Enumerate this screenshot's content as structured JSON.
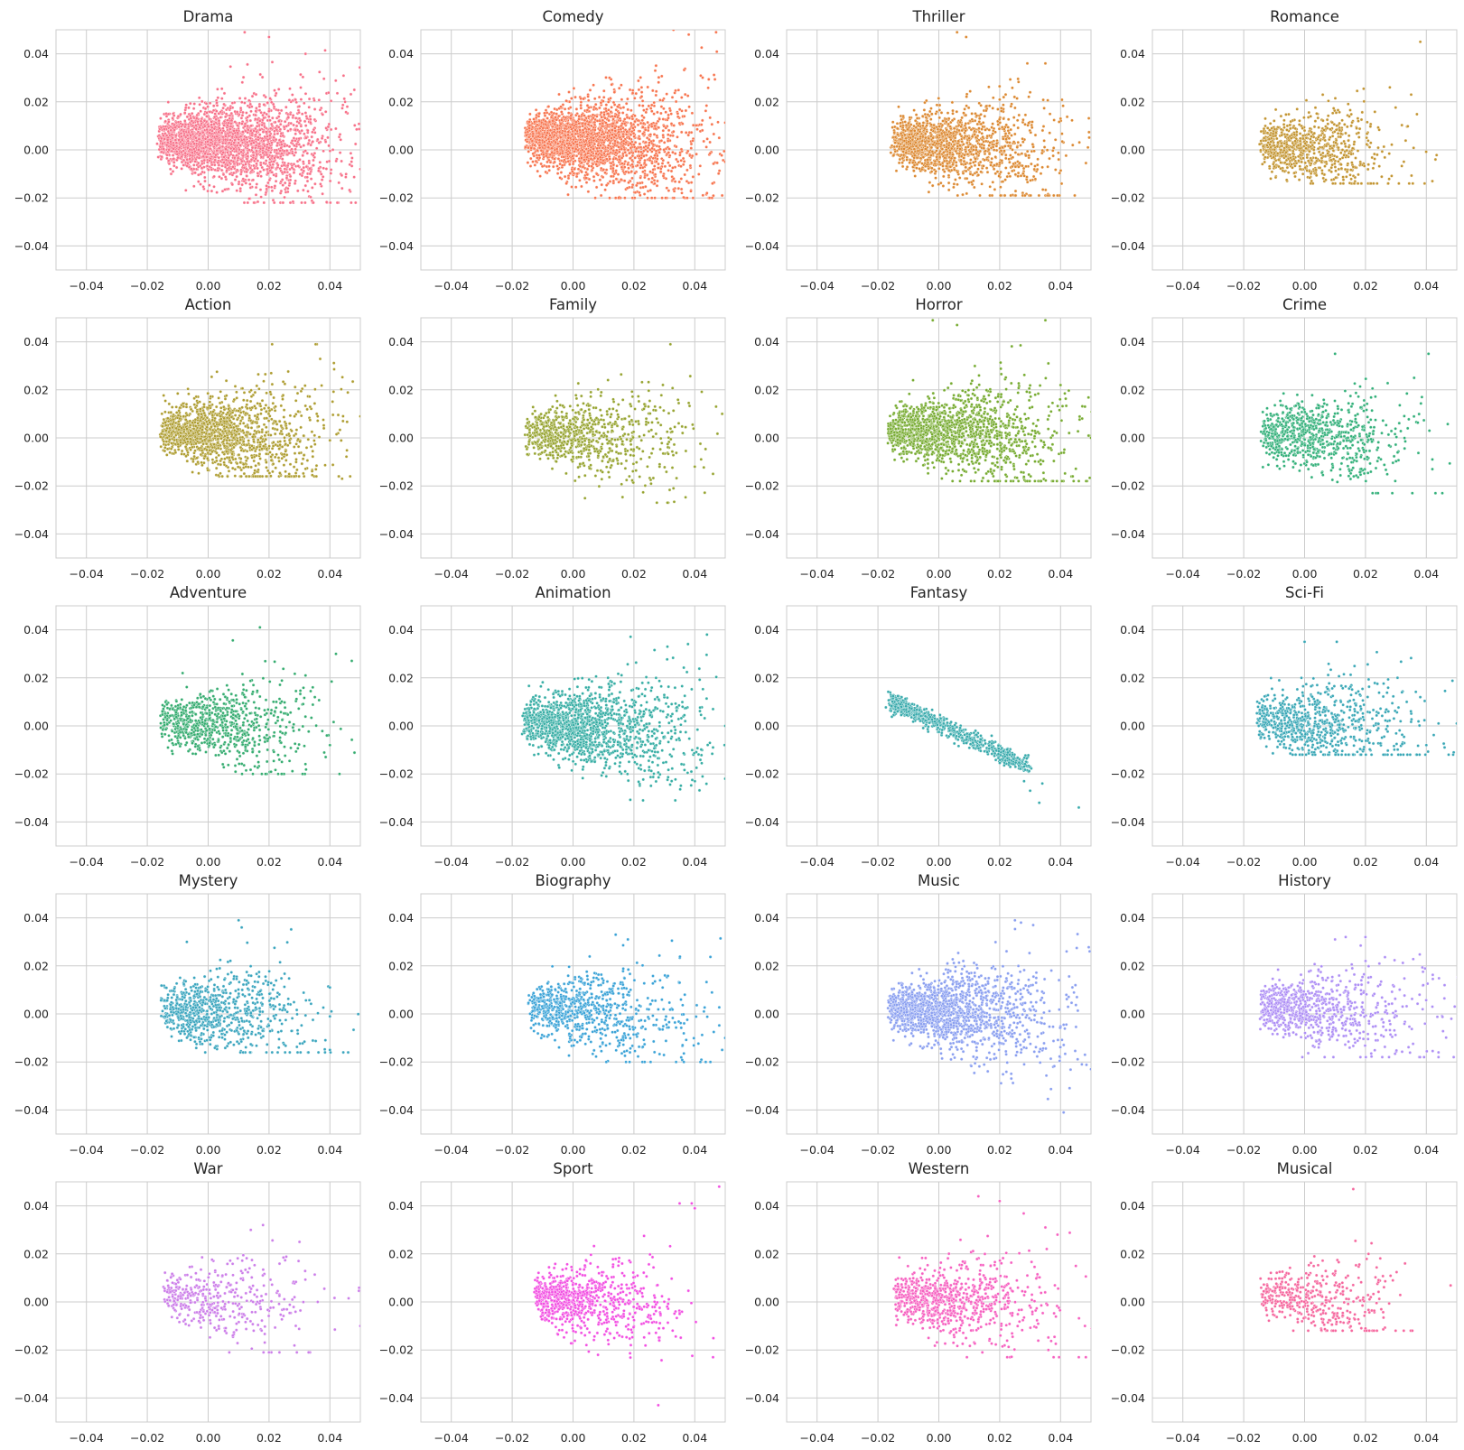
{
  "figure": {
    "axis_ticks": {
      "x": [
        -0.04,
        -0.02,
        0.0,
        0.02,
        0.04
      ],
      "y": [
        -0.04,
        -0.02,
        0.0,
        0.02,
        0.04
      ]
    },
    "tick_labels": {
      "x": [
        "−0.04",
        "−0.02",
        "0.00",
        "0.02",
        "0.04"
      ],
      "y": [
        "−0.04",
        "−0.02",
        "0.00",
        "0.02",
        "0.04"
      ]
    }
  },
  "chart_data": [
    {
      "type": "scatter",
      "title": "Drama",
      "color": "#f77189",
      "xlim": [
        -0.05,
        0.05
      ],
      "ylim": [
        -0.05,
        0.05
      ],
      "grid": true,
      "density": "very high",
      "cluster": {
        "x_range": [
          -0.018,
          0.05
        ],
        "y_range": [
          -0.022,
          0.05
        ],
        "center": [
          0.004,
          0.003
        ]
      },
      "outliers": [
        [
          0.012,
          0.049
        ],
        [
          0.02,
          0.047
        ],
        [
          0.032,
          0.04
        ],
        [
          0.045,
          0.02
        ],
        [
          0.048,
          0.025
        ],
        [
          0.05,
          -0.008
        ],
        [
          0.047,
          -0.022
        ],
        [
          0.044,
          -0.016
        ]
      ]
    },
    {
      "type": "scatter",
      "title": "Comedy",
      "color": "#f7754f",
      "xlim": [
        -0.05,
        0.05
      ],
      "ylim": [
        -0.05,
        0.05
      ],
      "grid": true,
      "density": "very high",
      "cluster": {
        "x_range": [
          -0.017,
          0.05
        ],
        "y_range": [
          -0.02,
          0.05
        ],
        "center": [
          0.004,
          0.004
        ]
      },
      "outliers": [
        [
          0.038,
          0.048
        ],
        [
          0.047,
          0.049
        ],
        [
          0.033,
          0.05
        ],
        [
          0.048,
          0.005
        ],
        [
          0.05,
          -0.005
        ],
        [
          0.044,
          -0.018
        ],
        [
          0.049,
          -0.019
        ]
      ]
    },
    {
      "type": "scatter",
      "title": "Thriller",
      "color": "#dc8932",
      "xlim": [
        -0.05,
        0.05
      ],
      "ylim": [
        -0.05,
        0.05
      ],
      "grid": true,
      "density": "high",
      "cluster": {
        "x_range": [
          -0.017,
          0.05
        ],
        "y_range": [
          -0.019,
          0.05
        ],
        "center": [
          0.001,
          0.002
        ]
      },
      "outliers": [
        [
          0.006,
          0.049
        ],
        [
          0.009,
          0.047
        ],
        [
          0.03,
          0.024
        ],
        [
          0.035,
          0.036
        ],
        [
          0.04,
          0.013
        ],
        [
          0.039,
          -0.019
        ],
        [
          0.044,
          0.002
        ],
        [
          0.049,
          0.001
        ]
      ]
    },
    {
      "type": "scatter",
      "title": "Romance",
      "color": "#c39532",
      "xlim": [
        -0.05,
        0.05
      ],
      "ylim": [
        -0.05,
        0.05
      ],
      "grid": true,
      "density": "medium",
      "cluster": {
        "x_range": [
          -0.016,
          0.032
        ],
        "y_range": [
          -0.014,
          0.036
        ],
        "center": [
          0.0,
          0.001
        ]
      },
      "outliers": [
        [
          0.038,
          0.045
        ],
        [
          0.035,
          0.023
        ],
        [
          0.028,
          0.026
        ],
        [
          0.042,
          -0.013
        ],
        [
          0.043,
          -0.004
        ]
      ]
    },
    {
      "type": "scatter",
      "title": "Action",
      "color": "#ae9d31",
      "xlim": [
        -0.05,
        0.05
      ],
      "ylim": [
        -0.05,
        0.05
      ],
      "grid": true,
      "density": "high",
      "cluster": {
        "x_range": [
          -0.017,
          0.05
        ],
        "y_range": [
          -0.016,
          0.039
        ],
        "center": [
          0.001,
          0.002
        ]
      },
      "outliers": [
        [
          0.021,
          0.039
        ],
        [
          0.036,
          0.009
        ],
        [
          0.04,
          -0.001
        ],
        [
          0.044,
          -0.017
        ],
        [
          0.05,
          0.009
        ],
        [
          0.038,
          0.004
        ]
      ]
    },
    {
      "type": "scatter",
      "title": "Family",
      "color": "#97a431",
      "xlim": [
        -0.05,
        0.05
      ],
      "ylim": [
        -0.05,
        0.05
      ],
      "grid": true,
      "density": "medium",
      "cluster": {
        "x_range": [
          -0.017,
          0.05
        ],
        "y_range": [
          -0.027,
          0.04
        ],
        "center": [
          0.001,
          0.001
        ]
      },
      "outliers": [
        [
          0.032,
          0.039
        ],
        [
          0.033,
          -0.021
        ],
        [
          0.031,
          -0.027
        ],
        [
          0.04,
          -0.012
        ],
        [
          0.047,
          0.013
        ],
        [
          0.049,
          0.01
        ],
        [
          0.046,
          -0.015
        ]
      ]
    },
    {
      "type": "scatter",
      "title": "Horror",
      "color": "#77ab31",
      "xlim": [
        -0.05,
        0.05
      ],
      "ylim": [
        -0.05,
        0.05
      ],
      "grid": true,
      "density": "high",
      "cluster": {
        "x_range": [
          -0.018,
          0.05
        ],
        "y_range": [
          -0.018,
          0.05
        ],
        "center": [
          0.001,
          0.002
        ]
      },
      "outliers": [
        [
          -0.002,
          0.049
        ],
        [
          0.006,
          0.047
        ],
        [
          0.035,
          0.049
        ],
        [
          0.036,
          0.031
        ],
        [
          0.04,
          0.022
        ],
        [
          0.048,
          0.013
        ],
        [
          0.05,
          0.0
        ],
        [
          0.044,
          -0.016
        ]
      ]
    },
    {
      "type": "scatter",
      "title": "Crime",
      "color": "#33b07a",
      "xlim": [
        -0.05,
        0.05
      ],
      "ylim": [
        -0.05,
        0.05
      ],
      "grid": true,
      "density": "medium",
      "cluster": {
        "x_range": [
          -0.016,
          0.043
        ],
        "y_range": [
          -0.023,
          0.035
        ],
        "center": [
          0.001,
          0.001
        ]
      },
      "outliers": [
        [
          0.01,
          0.035
        ],
        [
          0.036,
          0.025
        ],
        [
          0.041,
          0.003
        ],
        [
          0.042,
          -0.009
        ],
        [
          0.043,
          -0.023
        ],
        [
          0.042,
          -0.013
        ]
      ]
    },
    {
      "type": "scatter",
      "title": "Adventure",
      "color": "#35ac70",
      "xlim": [
        -0.05,
        0.05
      ],
      "ylim": [
        -0.05,
        0.05
      ],
      "grid": true,
      "density": "medium",
      "cluster": {
        "x_range": [
          -0.017,
          0.043
        ],
        "y_range": [
          -0.02,
          0.041
        ],
        "center": [
          0.001,
          0.001
        ]
      },
      "outliers": [
        [
          0.017,
          0.041
        ],
        [
          0.042,
          0.03
        ],
        [
          0.032,
          0.021
        ],
        [
          0.04,
          -0.008
        ],
        [
          0.039,
          -0.004
        ],
        [
          0.023,
          -0.02
        ]
      ]
    },
    {
      "type": "scatter",
      "title": "Animation",
      "color": "#36ada4",
      "xlim": [
        -0.05,
        0.05
      ],
      "ylim": [
        -0.05,
        0.05
      ],
      "grid": true,
      "density": "high",
      "cluster": {
        "x_range": [
          -0.018,
          0.05
        ],
        "y_range": [
          -0.031,
          0.038
        ],
        "center": [
          0.002,
          0.0
        ]
      },
      "outliers": [
        [
          0.044,
          0.038
        ],
        [
          0.031,
          0.033
        ],
        [
          0.046,
          0.007
        ],
        [
          0.05,
          0.0
        ],
        [
          0.046,
          -0.009
        ],
        [
          0.05,
          -0.022
        ],
        [
          0.023,
          -0.031
        ]
      ]
    },
    {
      "type": "scatter",
      "title": "Fantasy",
      "color": "#38aaac",
      "xlim": [
        -0.05,
        0.05
      ],
      "ylim": [
        -0.05,
        0.05
      ],
      "grid": true,
      "density": "medium",
      "cluster": {
        "x_range": [
          -0.015,
          0.046
        ],
        "y_range": [
          -0.034,
          0.011
        ],
        "center": [
          0.0,
          -0.002
        ]
      },
      "outliers": [
        [
          0.028,
          -0.023
        ],
        [
          0.03,
          -0.027
        ],
        [
          0.033,
          -0.032
        ],
        [
          0.046,
          -0.034
        ],
        [
          0.034,
          -0.024
        ]
      ]
    },
    {
      "type": "scatter",
      "title": "Sci-Fi",
      "color": "#39a7b6",
      "xlim": [
        -0.05,
        0.05
      ],
      "ylim": [
        -0.05,
        0.05
      ],
      "grid": true,
      "density": "medium",
      "cluster": {
        "x_range": [
          -0.017,
          0.05
        ],
        "y_range": [
          -0.012,
          0.035
        ],
        "center": [
          0.001,
          0.001
        ]
      },
      "outliers": [
        [
          0.0,
          0.035
        ],
        [
          0.032,
          0.014
        ],
        [
          0.038,
          0.012
        ],
        [
          0.04,
          -0.008
        ],
        [
          0.046,
          -0.009
        ],
        [
          0.049,
          -0.011
        ],
        [
          0.05,
          0.001
        ],
        [
          0.044,
          0.001
        ]
      ]
    },
    {
      "type": "scatter",
      "title": "Mystery",
      "color": "#3aa5be",
      "xlim": [
        -0.05,
        0.05
      ],
      "ylim": [
        -0.05,
        0.05
      ],
      "grid": true,
      "density": "medium",
      "cluster": {
        "x_range": [
          -0.017,
          0.046
        ],
        "y_range": [
          -0.016,
          0.039
        ],
        "center": [
          0.001,
          0.001
        ]
      },
      "outliers": [
        [
          0.01,
          0.039
        ],
        [
          0.011,
          0.036
        ],
        [
          -0.007,
          0.03
        ],
        [
          0.04,
          0.011
        ],
        [
          0.04,
          -0.001
        ],
        [
          0.046,
          -0.016
        ],
        [
          0.04,
          -0.015
        ]
      ]
    },
    {
      "type": "scatter",
      "title": "Biography",
      "color": "#3ba3d7",
      "xlim": [
        -0.05,
        0.05
      ],
      "ylim": [
        -0.05,
        0.05
      ],
      "grid": true,
      "density": "medium",
      "cluster": {
        "x_range": [
          -0.016,
          0.05
        ],
        "y_range": [
          -0.02,
          0.033
        ],
        "center": [
          0.002,
          0.002
        ]
      },
      "outliers": [
        [
          0.014,
          0.033
        ],
        [
          0.018,
          0.031
        ],
        [
          0.035,
          0.013
        ],
        [
          0.043,
          0.001
        ],
        [
          0.049,
          -0.015
        ],
        [
          0.05,
          -0.01
        ],
        [
          0.036,
          -0.013
        ]
      ]
    },
    {
      "type": "scatter",
      "title": "Music",
      "color": "#8a9ff0",
      "xlim": [
        -0.05,
        0.05
      ],
      "ylim": [
        -0.05,
        0.05
      ],
      "grid": true,
      "density": "high",
      "cluster": {
        "x_range": [
          -0.018,
          0.05
        ],
        "y_range": [
          -0.041,
          0.039
        ],
        "center": [
          0.002,
          0.001
        ]
      },
      "outliers": [
        [
          0.025,
          0.039
        ],
        [
          0.027,
          0.038
        ],
        [
          0.031,
          0.037
        ],
        [
          0.042,
          0.026
        ],
        [
          0.047,
          -0.021
        ],
        [
          0.05,
          -0.023
        ],
        [
          0.041,
          -0.041
        ],
        [
          0.048,
          -0.017
        ]
      ]
    },
    {
      "type": "scatter",
      "title": "History",
      "color": "#ae8ff5",
      "xlim": [
        -0.05,
        0.05
      ],
      "ylim": [
        -0.05,
        0.05
      ],
      "grid": true,
      "density": "medium",
      "cluster": {
        "x_range": [
          -0.016,
          0.05
        ],
        "y_range": [
          -0.018,
          0.032
        ],
        "center": [
          0.001,
          0.002
        ]
      },
      "outliers": [
        [
          0.02,
          0.032
        ],
        [
          0.01,
          0.031
        ],
        [
          0.039,
          0.012
        ],
        [
          0.042,
          0.003
        ],
        [
          0.046,
          0.012
        ],
        [
          0.049,
          -0.018
        ],
        [
          0.044,
          -0.016
        ]
      ]
    },
    {
      "type": "scatter",
      "title": "War",
      "color": "#cc7ee9",
      "xlim": [
        -0.05,
        0.05
      ],
      "ylim": [
        -0.05,
        0.05
      ],
      "grid": true,
      "density": "low",
      "cluster": {
        "x_range": [
          -0.016,
          0.05
        ],
        "y_range": [
          -0.021,
          0.032
        ],
        "center": [
          0.001,
          0.001
        ]
      },
      "outliers": [
        [
          0.018,
          0.032
        ],
        [
          0.014,
          0.03
        ],
        [
          0.03,
          0.025
        ],
        [
          0.036,
          0.0
        ],
        [
          0.033,
          -0.021
        ],
        [
          0.05,
          -0.01
        ]
      ]
    },
    {
      "type": "scatter",
      "title": "Sport",
      "color": "#f24fe2",
      "xlim": [
        -0.05,
        0.05
      ],
      "ylim": [
        -0.05,
        0.05
      ],
      "grid": true,
      "density": "medium",
      "cluster": {
        "x_range": [
          -0.014,
          0.05
        ],
        "y_range": [
          -0.043,
          0.048
        ],
        "center": [
          -0.002,
          0.001
        ]
      },
      "outliers": [
        [
          0.048,
          0.048
        ],
        [
          0.039,
          0.041
        ],
        [
          0.035,
          0.041
        ],
        [
          0.04,
          0.039
        ],
        [
          0.028,
          -0.043
        ],
        [
          0.046,
          -0.023
        ],
        [
          0.035,
          -0.005
        ],
        [
          0.019,
          -0.018
        ]
      ]
    },
    {
      "type": "scatter",
      "title": "Western",
      "color": "#f660c0",
      "xlim": [
        -0.05,
        0.05
      ],
      "ylim": [
        -0.05,
        0.05
      ],
      "grid": true,
      "density": "medium",
      "cluster": {
        "x_range": [
          -0.016,
          0.05
        ],
        "y_range": [
          -0.023,
          0.044
        ],
        "center": [
          0.002,
          0.001
        ]
      },
      "outliers": [
        [
          0.013,
          0.044
        ],
        [
          0.02,
          0.042
        ],
        [
          0.035,
          0.031
        ],
        [
          0.039,
          0.028
        ],
        [
          0.045,
          0.015
        ],
        [
          0.046,
          -0.023
        ],
        [
          0.048,
          -0.01
        ],
        [
          0.036,
          -0.02
        ]
      ]
    },
    {
      "type": "scatter",
      "title": "Musical",
      "color": "#f5679e",
      "xlim": [
        -0.05,
        0.05
      ],
      "ylim": [
        -0.05,
        0.05
      ],
      "grid": true,
      "density": "low",
      "cluster": {
        "x_range": [
          -0.016,
          0.033
        ],
        "y_range": [
          -0.012,
          0.047
        ],
        "center": [
          0.002,
          0.001
        ]
      },
      "outliers": [
        [
          0.016,
          0.047
        ],
        [
          0.033,
          0.016
        ],
        [
          0.029,
          0.009
        ],
        [
          0.021,
          0.02
        ],
        [
          0.02,
          -0.011
        ],
        [
          0.018,
          -0.009
        ]
      ]
    }
  ]
}
